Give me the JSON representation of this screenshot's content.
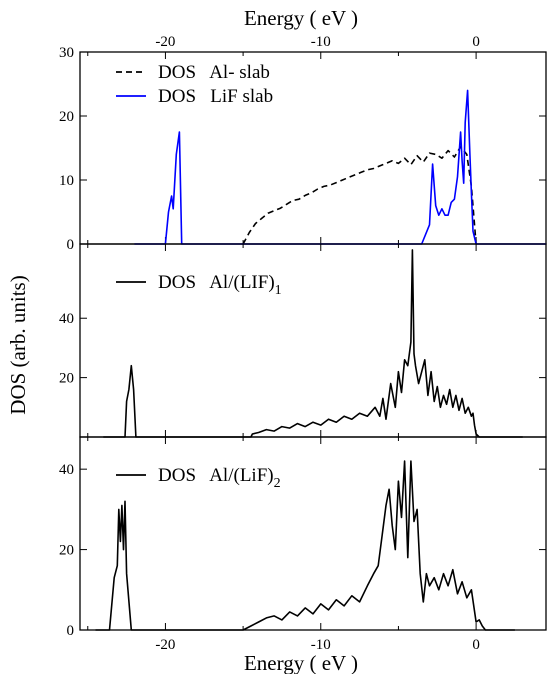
{
  "figure": {
    "top_xlabel": "Energy ( eV )",
    "bottom_xlabel": "Energy ( eV )",
    "ylabel": "DOS  (arb. units)"
  },
  "chart_data": [
    {
      "type": "line",
      "xlim": [
        -25.5,
        4.5
      ],
      "ylim": [
        0,
        30
      ],
      "x_ticks": [
        -20,
        -10,
        0
      ],
      "x_tick_labels": [
        "-20",
        "-10",
        "0"
      ],
      "y_ticks": [
        0,
        10,
        20,
        30
      ],
      "y_tick_labels": [
        "0",
        "10",
        "20",
        "30"
      ],
      "grid": false,
      "legend_position": "top-left",
      "series": [
        {
          "name": "DOS   Al- slab",
          "color": "#000000",
          "style": "dashed",
          "x": [
            -15,
            -14.6,
            -14.2,
            -13.8,
            -13.4,
            -13,
            -12.6,
            -12.2,
            -11.8,
            -11.4,
            -11,
            -10.6,
            -10.2,
            -9.8,
            -9.4,
            -9,
            -8.6,
            -8.2,
            -7.8,
            -7.4,
            -7,
            -6.6,
            -6.2,
            -5.8,
            -5.4,
            -5,
            -4.6,
            -4.2,
            -3.8,
            -3.4,
            -3,
            -2.6,
            -2.2,
            -1.8,
            -1.4,
            -1,
            -0.6,
            -0.3,
            0
          ],
          "y": [
            0,
            1.8,
            3.2,
            4,
            4.8,
            5.2,
            5.6,
            6.2,
            6.8,
            7,
            7.6,
            8,
            8.6,
            9,
            9.2,
            9.6,
            10,
            10.4,
            10.8,
            11.2,
            11.6,
            11.8,
            12.2,
            12.6,
            13,
            12.6,
            13.4,
            12.4,
            13.8,
            12.8,
            14.2,
            14,
            13.4,
            14.6,
            13.6,
            15.2,
            14,
            9,
            0
          ]
        },
        {
          "name": "DOS   LiF slab",
          "color": "#0000ff",
          "style": "solid",
          "x": [
            -22,
            -20,
            -19.8,
            -19.6,
            -19.5,
            -19.3,
            -19.1,
            -18.95,
            -18.8,
            -3.5,
            -3,
            -2.8,
            -2.6,
            -2.4,
            -2.2,
            -2,
            -1.8,
            -1.6,
            -1.4,
            -1.2,
            -1,
            -0.9,
            -0.8,
            -0.7,
            -0.55,
            -0.4,
            -0.3,
            -0.2,
            0,
            4.5
          ],
          "y": [
            0,
            0,
            5,
            7.5,
            5.5,
            14,
            17.5,
            0,
            0,
            0,
            3,
            12.5,
            6,
            4.5,
            5.5,
            4.5,
            4.5,
            6.5,
            7,
            10.5,
            17.5,
            13,
            9.5,
            19,
            24,
            14,
            8,
            2,
            0,
            0
          ]
        }
      ]
    },
    {
      "type": "line",
      "xlim": [
        -25.5,
        4.5
      ],
      "ylim": [
        0,
        65
      ],
      "y_ticks": [
        20,
        40
      ],
      "y_tick_labels": [
        "20",
        "40"
      ],
      "grid": false,
      "legend_position": "top-left",
      "series": [
        {
          "name": "DOS   Al/(LIF)",
          "name_subscript": "1",
          "color": "#000000",
          "style": "solid",
          "x": [
            -24,
            -22.6,
            -22.5,
            -22.35,
            -22.2,
            -22.05,
            -21.9,
            -21.8,
            -14.5,
            -14.4,
            -14,
            -13.5,
            -13,
            -12.5,
            -12,
            -11.5,
            -11,
            -10.5,
            -10,
            -9.5,
            -9,
            -8.5,
            -8,
            -7.5,
            -7,
            -6.5,
            -6.2,
            -6,
            -5.8,
            -5.5,
            -5.2,
            -5,
            -4.8,
            -4.6,
            -4.4,
            -4.2,
            -4.1,
            -4.0,
            -3.9,
            -3.7,
            -3.5,
            -3.3,
            -3.1,
            -2.9,
            -2.7,
            -2.5,
            -2.3,
            -2.1,
            -1.9,
            -1.7,
            -1.5,
            -1.3,
            -1.1,
            -0.9,
            -0.7,
            -0.5,
            -0.3,
            -0.2,
            -0.1,
            0,
            0.2,
            3
          ],
          "y": [
            0,
            0,
            12,
            16,
            24,
            16,
            0,
            0,
            0,
            1,
            1.5,
            2.5,
            2,
            3.5,
            3,
            4.5,
            3.5,
            5,
            4,
            6,
            5,
            7,
            6,
            8,
            7,
            10,
            7,
            13,
            6,
            18,
            10,
            22,
            15,
            26,
            24,
            32,
            63,
            28,
            24,
            18,
            22,
            26,
            14,
            22,
            12,
            17,
            10,
            14,
            11,
            16,
            10,
            14,
            9,
            13,
            8,
            10,
            7,
            8,
            4,
            1,
            0,
            0
          ]
        }
      ]
    },
    {
      "type": "line",
      "xlim": [
        -25.5,
        4.5
      ],
      "ylim": [
        0,
        48
      ],
      "x_ticks": [
        -20,
        -10,
        0
      ],
      "x_tick_labels": [
        "-20",
        "-10",
        "0"
      ],
      "y_ticks": [
        0,
        20,
        40
      ],
      "y_tick_labels": [
        "0",
        "20",
        "40"
      ],
      "grid": false,
      "legend_position": "top-left",
      "series": [
        {
          "name": "DOS   Al/(LiF)",
          "name_subscript": "2",
          "color": "#000000",
          "style": "solid",
          "x": [
            -24.5,
            -23.6,
            -23.3,
            -23.1,
            -23,
            -22.9,
            -22.8,
            -22.7,
            -22.6,
            -22.5,
            -22.2,
            -15,
            -14.5,
            -14,
            -13.5,
            -13,
            -12.5,
            -12,
            -11.5,
            -11,
            -10.5,
            -10,
            -9.5,
            -9,
            -8.5,
            -8,
            -7.5,
            -7,
            -6.6,
            -6.3,
            -6,
            -5.8,
            -5.6,
            -5.4,
            -5.2,
            -5,
            -4.8,
            -4.6,
            -4.4,
            -4.2,
            -4.0,
            -3.8,
            -3.6,
            -3.4,
            -3.2,
            -3,
            -2.7,
            -2.4,
            -2.1,
            -1.8,
            -1.5,
            -1.2,
            -0.9,
            -0.6,
            -0.3,
            0,
            0.2,
            0.4,
            0.6,
            2.5
          ],
          "y": [
            0,
            0,
            13,
            16,
            30,
            22,
            31,
            20,
            32,
            14,
            0,
            0,
            1,
            2,
            3,
            3.5,
            2.5,
            4.5,
            3.5,
            5.5,
            4,
            6.5,
            5,
            7.5,
            6,
            8.5,
            7,
            11,
            14,
            16,
            25,
            31,
            35,
            26,
            20,
            37,
            28,
            42,
            18,
            42,
            27,
            30,
            14,
            7,
            14,
            11,
            13,
            10,
            14,
            11,
            15,
            9,
            12,
            8,
            10,
            2,
            2.5,
            1,
            0,
            0
          ]
        }
      ]
    }
  ]
}
